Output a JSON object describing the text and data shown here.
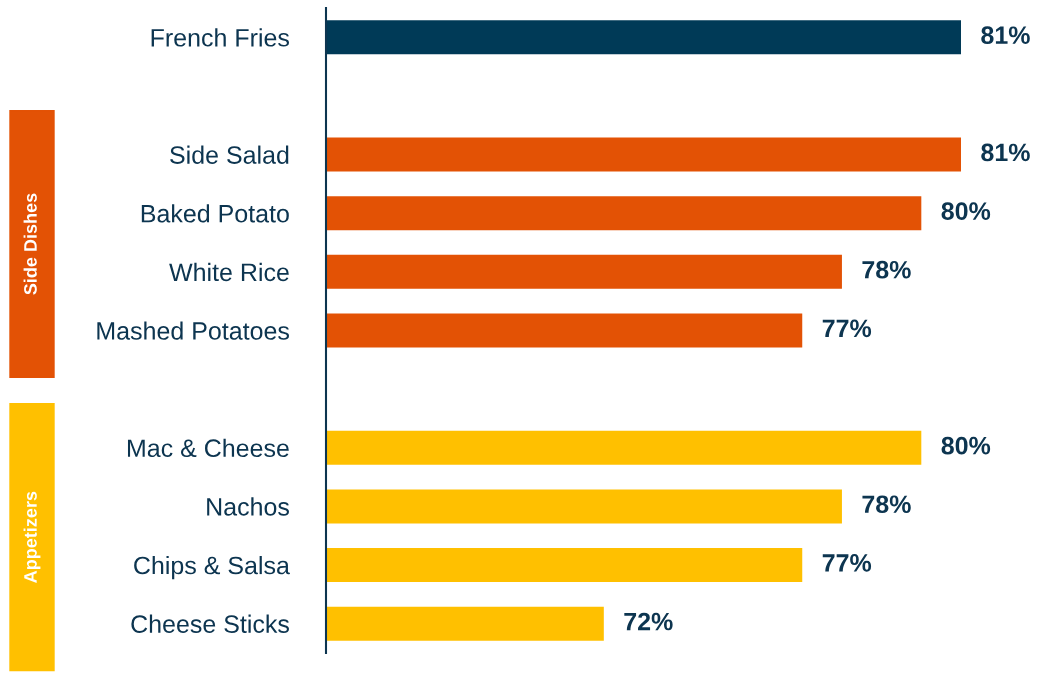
{
  "chart_data": {
    "type": "bar",
    "orientation": "horizontal",
    "categories": [
      "French Fries",
      null,
      "Side Salad",
      "Baked Potato",
      "White Rice",
      "Mashed Potatoes",
      null,
      "Mac & Cheese",
      "Nachos",
      "Chips & Salsa",
      "Cheese Sticks"
    ],
    "values": [
      81,
      null,
      81,
      80,
      78,
      77,
      null,
      80,
      78,
      77,
      72
    ],
    "colors": [
      "#003a57",
      null,
      "#e35205",
      "#e35205",
      "#e35205",
      "#e35205",
      null,
      "#ffc000",
      "#ffc000",
      "#ffc000",
      "#ffc000"
    ],
    "value_labels": [
      "81%",
      null,
      "81%",
      "80%",
      "78%",
      "77%",
      null,
      "80%",
      "78%",
      "77%",
      "72%"
    ],
    "xlim": [
      65,
      81
    ],
    "tick_labels": "y",
    "grid": false,
    "annotations": [
      "Side Dishes",
      "Appetizers"
    ]
  }
}
